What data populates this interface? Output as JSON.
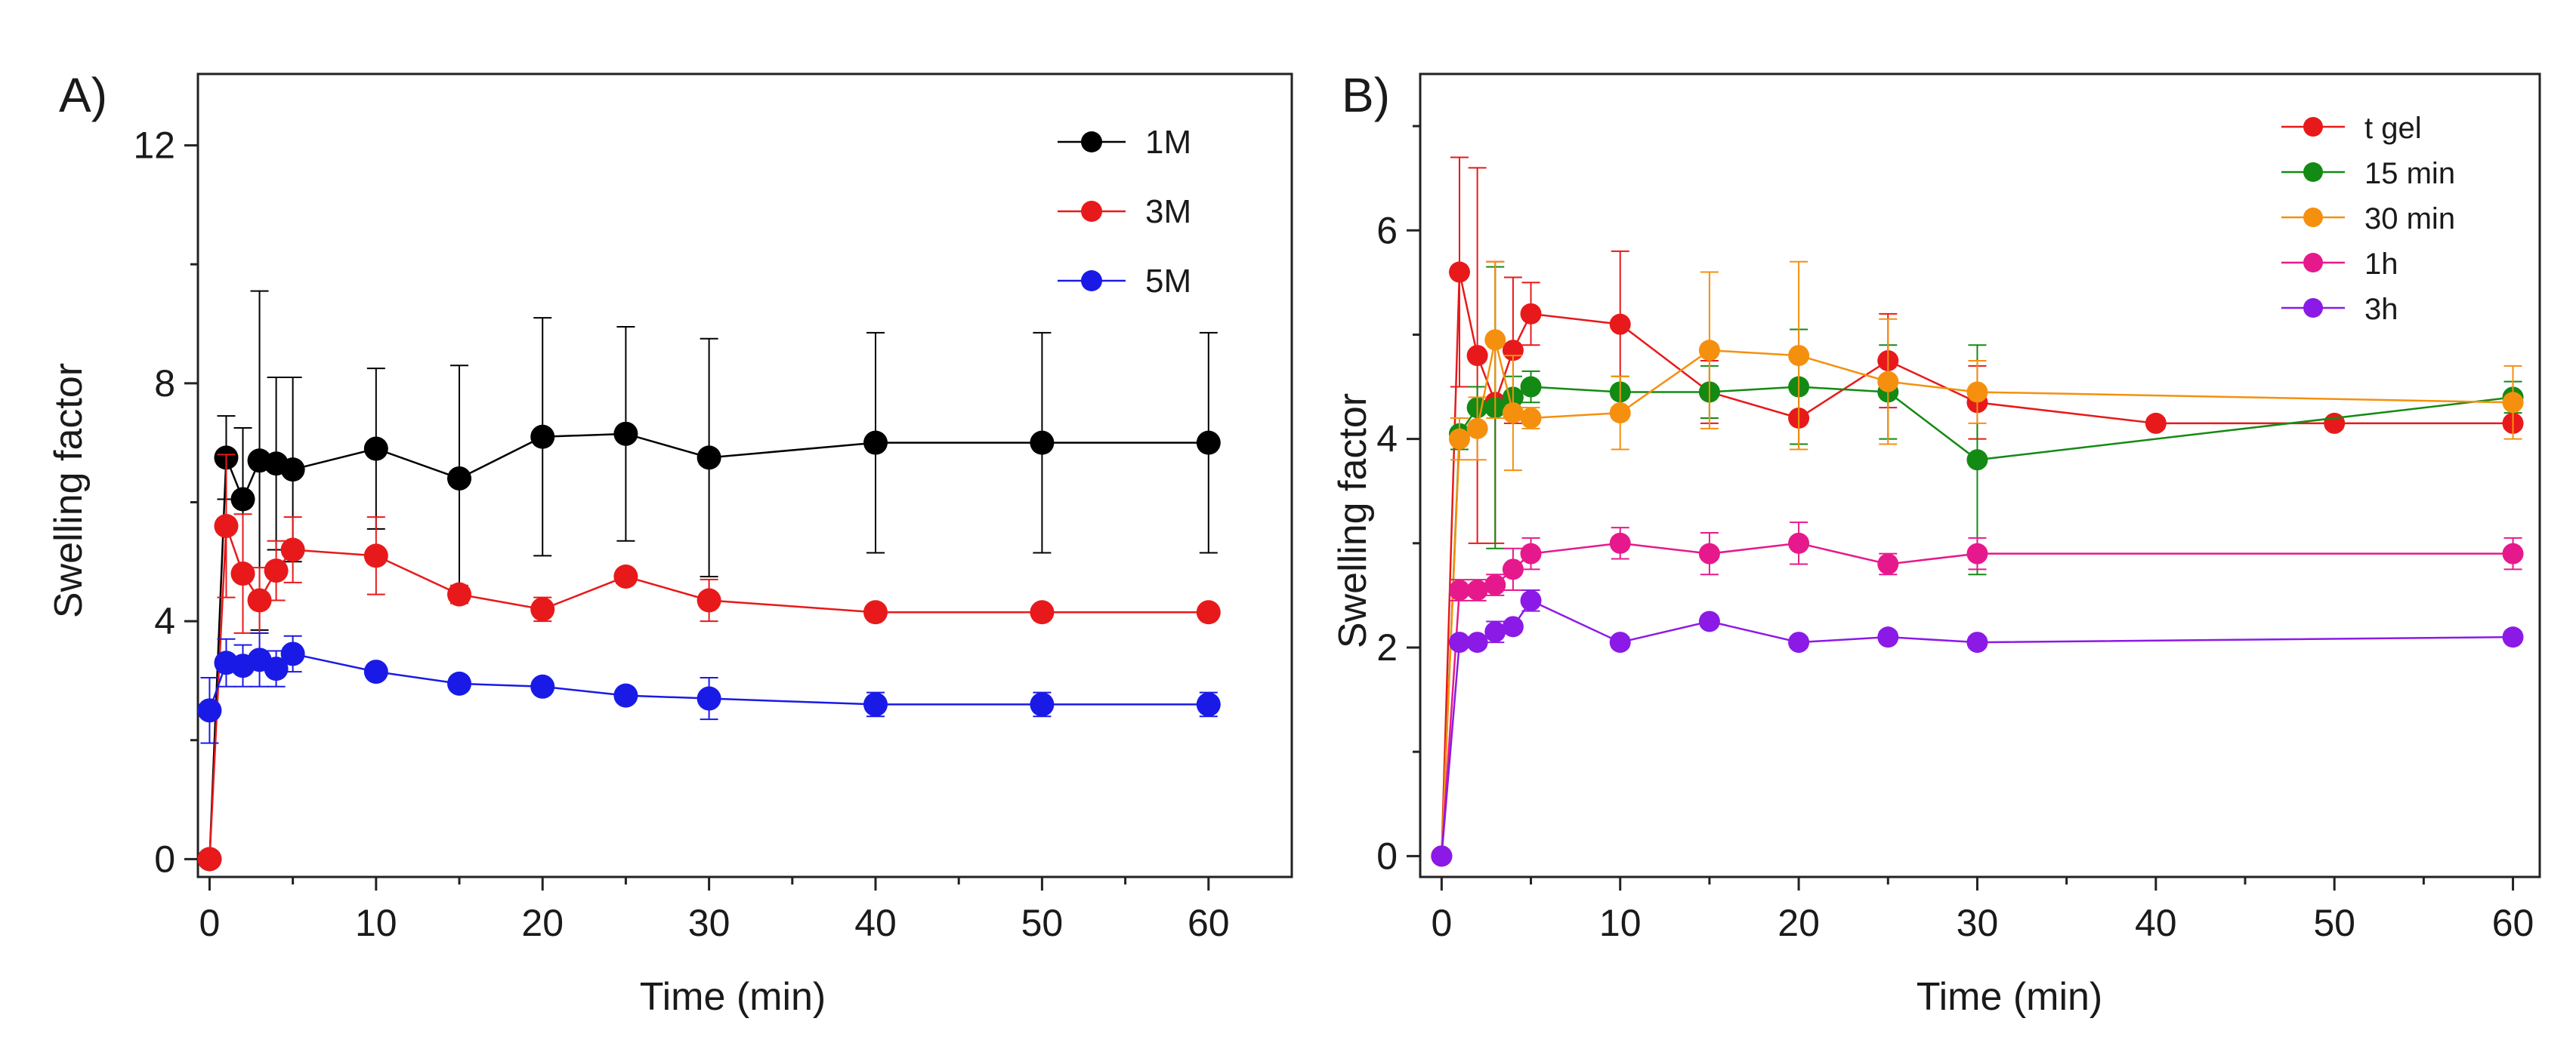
{
  "chart_data": [
    {
      "panel_label": "A)",
      "type": "line",
      "xlabel": "Time (min)",
      "ylabel": "Swelling factor",
      "xlim": [
        -0.7,
        65
      ],
      "ylim": [
        -0.3,
        13.2
      ],
      "xticks": [
        0,
        10,
        20,
        30,
        40,
        50,
        60
      ],
      "yticks": [
        0,
        4,
        8,
        12
      ],
      "legend_position": "top-right",
      "series": [
        {
          "name": "1M",
          "color": "#000000",
          "x": [
            0,
            1,
            2,
            3,
            4,
            5,
            10,
            15,
            20,
            25,
            30,
            40,
            50,
            60
          ],
          "y": [
            0,
            6.75,
            6.05,
            6.7,
            6.65,
            6.55,
            6.9,
            6.4,
            7.1,
            7.15,
            6.75,
            7.0,
            7.0,
            7.0
          ],
          "err": [
            0,
            0.7,
            1.2,
            2.85,
            1.45,
            1.55,
            1.35,
            1.9,
            2.0,
            1.8,
            2.0,
            1.85,
            1.85,
            1.85
          ]
        },
        {
          "name": "3M",
          "color": "#e8191a",
          "x": [
            0,
            1,
            2,
            3,
            4,
            5,
            10,
            15,
            20,
            25,
            30,
            40,
            50,
            60
          ],
          "y": [
            0,
            5.6,
            4.8,
            4.35,
            4.85,
            5.2,
            5.1,
            4.45,
            4.2,
            4.75,
            4.35,
            4.15,
            4.15,
            4.15
          ],
          "err": [
            0,
            1.2,
            1.0,
            0.55,
            0.5,
            0.55,
            0.65,
            0.15,
            0.2,
            0.1,
            0.35,
            0.05,
            0.05,
            0.05
          ]
        },
        {
          "name": "5M",
          "color": "#1a1ae6",
          "x": [
            0,
            1,
            2,
            3,
            4,
            5,
            10,
            15,
            20,
            25,
            30,
            40,
            50,
            60
          ],
          "y": [
            2.5,
            3.3,
            3.25,
            3.35,
            3.2,
            3.45,
            3.15,
            2.95,
            2.9,
            2.75,
            2.7,
            2.6,
            2.6,
            2.6
          ],
          "err": [
            0.55,
            0.4,
            0.35,
            0.45,
            0.3,
            0.3,
            0.1,
            0.1,
            0.1,
            0.1,
            0.35,
            0.2,
            0.2,
            0.2
          ]
        }
      ]
    },
    {
      "panel_label": "B)",
      "type": "line",
      "xlabel": "Time (min)",
      "ylabel": "Swelling factor",
      "xlim": [
        -1.2,
        61.5
      ],
      "ylim": [
        -0.2,
        7.5
      ],
      "xticks": [
        0,
        10,
        20,
        30,
        40,
        50,
        60
      ],
      "yticks": [
        0,
        2,
        4,
        6
      ],
      "legend_position": "top-right",
      "series": [
        {
          "name": "t gel",
          "color": "#e8191a",
          "x": [
            0,
            1,
            2,
            3,
            4,
            5,
            10,
            15,
            20,
            25,
            30,
            40,
            50,
            60
          ],
          "y": [
            0,
            5.6,
            4.8,
            4.35,
            4.85,
            5.2,
            5.1,
            4.45,
            4.2,
            4.75,
            4.35,
            4.15,
            4.15,
            4.15
          ],
          "err": [
            0,
            1.1,
            1.8,
            1.35,
            0.7,
            0.3,
            0.7,
            0.3,
            0.3,
            0.45,
            0.35,
            0.05,
            0.05,
            0.05
          ]
        },
        {
          "name": "15 min",
          "color": "#138a13",
          "x": [
            0,
            1,
            2,
            3,
            4,
            5,
            10,
            15,
            20,
            25,
            30,
            60
          ],
          "y": [
            0,
            4.05,
            4.3,
            4.3,
            4.4,
            4.5,
            4.45,
            4.45,
            4.5,
            4.45,
            3.8,
            4.4
          ],
          "err": [
            0,
            0.15,
            0.2,
            1.35,
            0.2,
            0.15,
            0.15,
            0.25,
            0.55,
            0.45,
            1.1,
            0.15
          ]
        },
        {
          "name": "30 min",
          "color": "#f5900f",
          "x": [
            0,
            1,
            2,
            3,
            4,
            5,
            10,
            15,
            20,
            25,
            30,
            60
          ],
          "y": [
            0,
            4.0,
            4.1,
            4.95,
            4.25,
            4.2,
            4.25,
            4.85,
            4.8,
            4.55,
            4.45,
            4.35
          ],
          "err": [
            0,
            0.2,
            0.3,
            0.75,
            0.55,
            0.1,
            0.35,
            0.75,
            0.9,
            0.6,
            0.3,
            0.35
          ]
        },
        {
          "name": "1h",
          "color": "#e6198c",
          "x": [
            0,
            1,
            2,
            3,
            4,
            5,
            10,
            15,
            20,
            25,
            30,
            60
          ],
          "y": [
            0,
            2.55,
            2.55,
            2.6,
            2.75,
            2.9,
            3.0,
            2.9,
            3.0,
            2.8,
            2.9,
            2.9
          ],
          "err": [
            0,
            0.1,
            0.1,
            0.1,
            0.2,
            0.15,
            0.15,
            0.2,
            0.2,
            0.1,
            0.15,
            0.15
          ]
        },
        {
          "name": "3h",
          "color": "#8c1ae6",
          "x": [
            0,
            1,
            2,
            3,
            4,
            5,
            10,
            15,
            20,
            25,
            30,
            60
          ],
          "y": [
            0,
            2.05,
            2.05,
            2.15,
            2.2,
            2.45,
            2.05,
            2.25,
            2.05,
            2.1,
            2.05,
            2.1
          ],
          "err": [
            0,
            0.05,
            0.05,
            0.1,
            0.05,
            0.1,
            0.05,
            0.05,
            0.05,
            0.05,
            0.05,
            0.05
          ]
        }
      ]
    }
  ]
}
